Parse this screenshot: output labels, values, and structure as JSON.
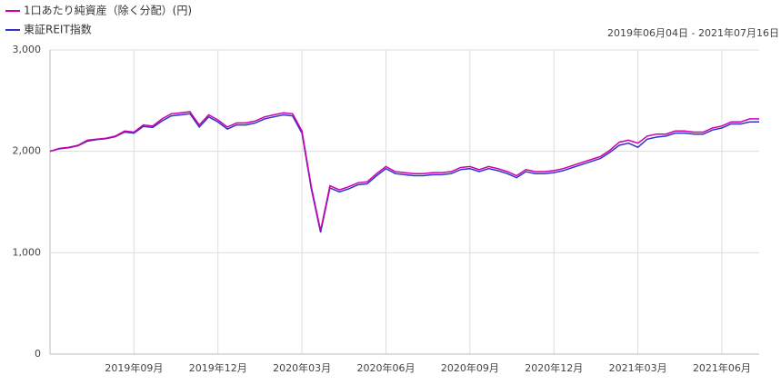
{
  "chart_data": {
    "type": "line",
    "date_range": "2019年06月04日 - 2021年07月16日",
    "categories": [
      null,
      null,
      null,
      null,
      null,
      null,
      null,
      null,
      null,
      "2019年09月",
      null,
      null,
      null,
      null,
      null,
      null,
      null,
      null,
      "2019年12月",
      null,
      null,
      null,
      null,
      null,
      null,
      null,
      null,
      "2020年03月",
      null,
      null,
      null,
      null,
      null,
      null,
      null,
      null,
      "2020年06月",
      null,
      null,
      null,
      null,
      null,
      null,
      null,
      null,
      "2020年09月",
      null,
      null,
      null,
      null,
      null,
      null,
      null,
      null,
      "2020年12月",
      null,
      null,
      null,
      null,
      null,
      null,
      null,
      null,
      "2021年03月",
      null,
      null,
      null,
      null,
      null,
      null,
      null,
      null,
      "2021年06月",
      null,
      null,
      null,
      null
    ],
    "series": [
      {
        "name": "1口あたり純資産（除く分配）(円)",
        "color": "#cc00aa",
        "values": [
          2000,
          2030,
          2040,
          2060,
          2110,
          2120,
          2130,
          2150,
          2200,
          2190,
          2260,
          2250,
          2320,
          2370,
          2380,
          2390,
          2260,
          2360,
          2310,
          2240,
          2280,
          2280,
          2300,
          2340,
          2360,
          2380,
          2370,
          2200,
          1650,
          1220,
          1660,
          1620,
          1650,
          1690,
          1700,
          1780,
          1850,
          1800,
          1790,
          1780,
          1780,
          1790,
          1790,
          1800,
          1840,
          1850,
          1820,
          1850,
          1830,
          1800,
          1760,
          1820,
          1800,
          1800,
          1810,
          1830,
          1860,
          1890,
          1920,
          1950,
          2010,
          2090,
          2110,
          2080,
          2150,
          2170,
          2170,
          2200,
          2200,
          2190,
          2190,
          2230,
          2250,
          2290,
          2290,
          2320,
          2320
        ]
      },
      {
        "name": "東証REIT指数",
        "color": "#3333cc",
        "values": [
          2000,
          2025,
          2035,
          2055,
          2100,
          2115,
          2125,
          2145,
          2190,
          2180,
          2245,
          2235,
          2300,
          2350,
          2360,
          2370,
          2240,
          2340,
          2290,
          2220,
          2260,
          2260,
          2280,
          2320,
          2340,
          2360,
          2350,
          2180,
          1630,
          1200,
          1640,
          1600,
          1630,
          1670,
          1680,
          1760,
          1830,
          1780,
          1770,
          1760,
          1760,
          1770,
          1770,
          1780,
          1820,
          1830,
          1800,
          1830,
          1810,
          1780,
          1740,
          1800,
          1780,
          1780,
          1790,
          1810,
          1840,
          1870,
          1900,
          1930,
          1990,
          2060,
          2080,
          2040,
          2120,
          2140,
          2150,
          2180,
          2180,
          2170,
          2170,
          2210,
          2230,
          2270,
          2270,
          2290,
          2290
        ]
      }
    ],
    "ylim": [
      0,
      3000
    ],
    "yticks": [
      {
        "value": 0,
        "label": "0"
      },
      {
        "value": 1000,
        "label": "1,000"
      },
      {
        "value": 2000,
        "label": "2,000"
      },
      {
        "value": 3000,
        "label": "3,000"
      }
    ],
    "grid": true
  }
}
